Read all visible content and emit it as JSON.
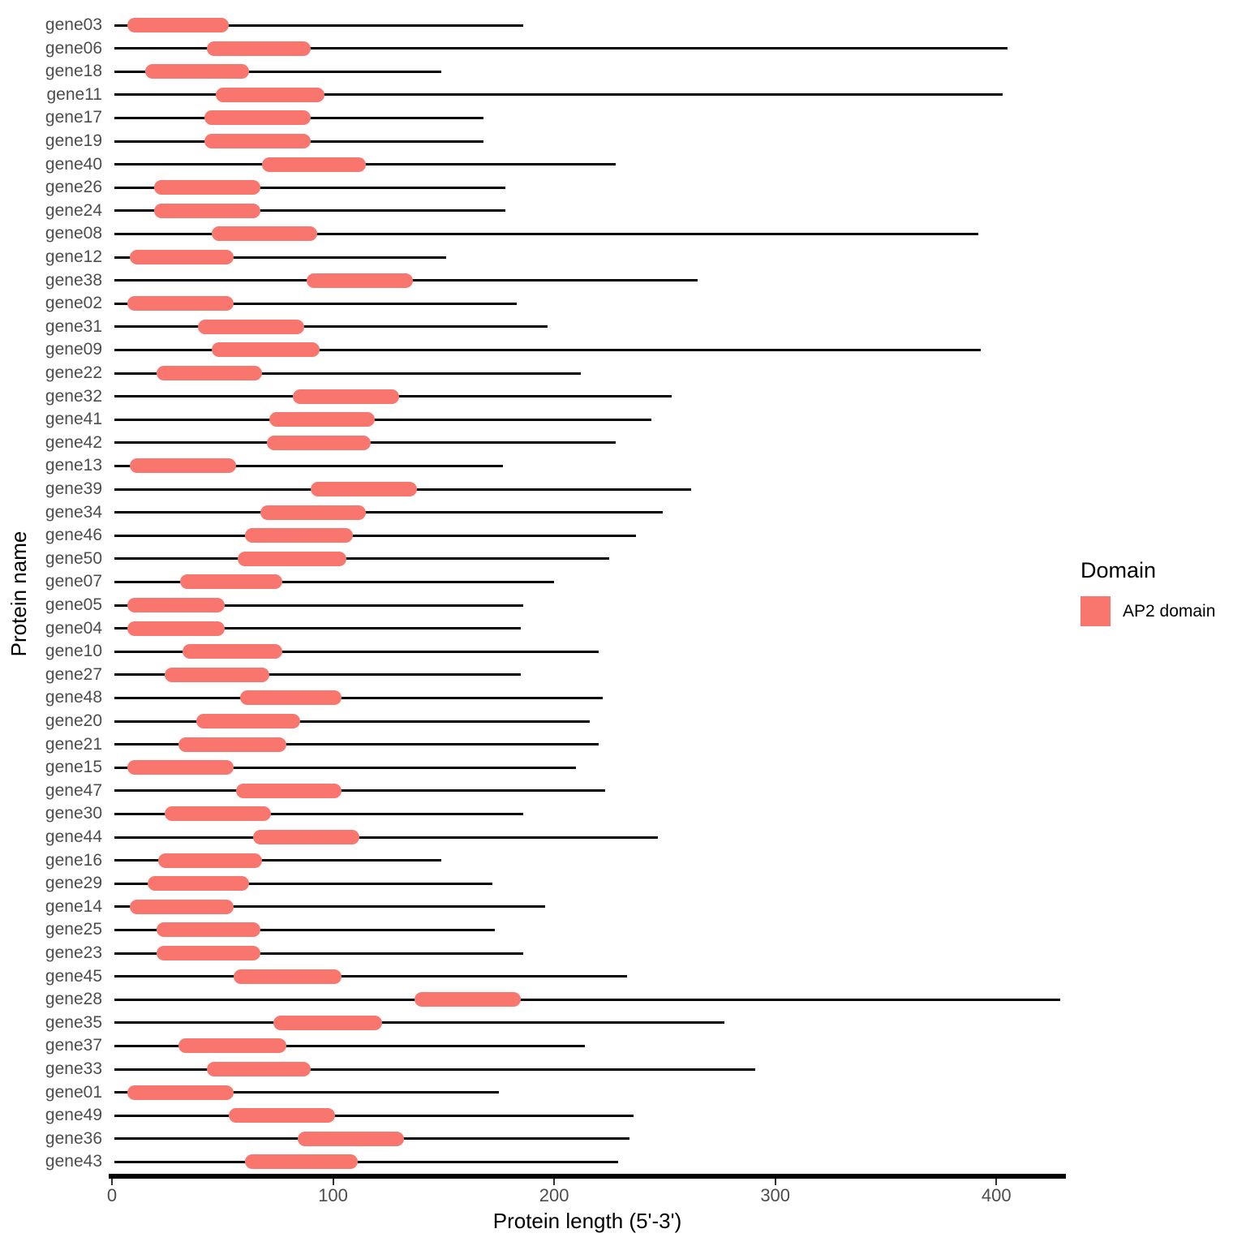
{
  "chart_data": {
    "type": "bar",
    "subtype": "protein-backbone-with-domain-segments",
    "orientation": "horizontal",
    "title": "",
    "xlabel": "Protein length (5'-3')",
    "ylabel": "Protein name",
    "xlim": [
      0,
      430
    ],
    "x_ticks": [
      0,
      100,
      200,
      300,
      400
    ],
    "grid": false,
    "backbone_start": 1,
    "legend": {
      "title": "Domain",
      "position": "right",
      "entries": [
        {
          "label": "AP2 domain",
          "color": "#F8766D"
        }
      ]
    },
    "colors": {
      "domain_fill": "#F8766D",
      "backbone": "#000000",
      "axis_text": "#4D4D4D",
      "axis_line": "#000000",
      "title_text": "#000000"
    },
    "proteins": [
      {
        "name": "gene03",
        "length": 186,
        "domain_begin": 7,
        "domain_end": 53
      },
      {
        "name": "gene06",
        "length": 405,
        "domain_begin": 43,
        "domain_end": 90
      },
      {
        "name": "gene18",
        "length": 149,
        "domain_begin": 15,
        "domain_end": 62
      },
      {
        "name": "gene11",
        "length": 403,
        "domain_begin": 47,
        "domain_end": 96
      },
      {
        "name": "gene17",
        "length": 168,
        "domain_begin": 42,
        "domain_end": 90
      },
      {
        "name": "gene19",
        "length": 168,
        "domain_begin": 42,
        "domain_end": 90
      },
      {
        "name": "gene40",
        "length": 228,
        "domain_begin": 68,
        "domain_end": 115
      },
      {
        "name": "gene26",
        "length": 178,
        "domain_begin": 19,
        "domain_end": 67
      },
      {
        "name": "gene24",
        "length": 178,
        "domain_begin": 19,
        "domain_end": 67
      },
      {
        "name": "gene08",
        "length": 392,
        "domain_begin": 45,
        "domain_end": 93
      },
      {
        "name": "gene12",
        "length": 151,
        "domain_begin": 8,
        "domain_end": 55
      },
      {
        "name": "gene38",
        "length": 265,
        "domain_begin": 88,
        "domain_end": 136
      },
      {
        "name": "gene02",
        "length": 183,
        "domain_begin": 7,
        "domain_end": 55
      },
      {
        "name": "gene31",
        "length": 197,
        "domain_begin": 39,
        "domain_end": 87
      },
      {
        "name": "gene09",
        "length": 393,
        "domain_begin": 45,
        "domain_end": 94
      },
      {
        "name": "gene22",
        "length": 212,
        "domain_begin": 20,
        "domain_end": 68
      },
      {
        "name": "gene32",
        "length": 253,
        "domain_begin": 82,
        "domain_end": 130
      },
      {
        "name": "gene41",
        "length": 244,
        "domain_begin": 71,
        "domain_end": 119
      },
      {
        "name": "gene42",
        "length": 228,
        "domain_begin": 70,
        "domain_end": 117
      },
      {
        "name": "gene13",
        "length": 177,
        "domain_begin": 8,
        "domain_end": 56
      },
      {
        "name": "gene39",
        "length": 262,
        "domain_begin": 90,
        "domain_end": 138
      },
      {
        "name": "gene34",
        "length": 249,
        "domain_begin": 67,
        "domain_end": 115
      },
      {
        "name": "gene46",
        "length": 237,
        "domain_begin": 60,
        "domain_end": 109
      },
      {
        "name": "gene50",
        "length": 225,
        "domain_begin": 57,
        "domain_end": 106
      },
      {
        "name": "gene07",
        "length": 200,
        "domain_begin": 31,
        "domain_end": 77
      },
      {
        "name": "gene05",
        "length": 186,
        "domain_begin": 7,
        "domain_end": 51
      },
      {
        "name": "gene04",
        "length": 185,
        "domain_begin": 7,
        "domain_end": 51
      },
      {
        "name": "gene10",
        "length": 220,
        "domain_begin": 32,
        "domain_end": 77
      },
      {
        "name": "gene27",
        "length": 185,
        "domain_begin": 24,
        "domain_end": 71
      },
      {
        "name": "gene48",
        "length": 222,
        "domain_begin": 58,
        "domain_end": 104
      },
      {
        "name": "gene20",
        "length": 216,
        "domain_begin": 38,
        "domain_end": 85
      },
      {
        "name": "gene21",
        "length": 220,
        "domain_begin": 30,
        "domain_end": 79
      },
      {
        "name": "gene15",
        "length": 210,
        "domain_begin": 7,
        "domain_end": 55
      },
      {
        "name": "gene47",
        "length": 223,
        "domain_begin": 56,
        "domain_end": 104
      },
      {
        "name": "gene30",
        "length": 186,
        "domain_begin": 24,
        "domain_end": 72
      },
      {
        "name": "gene44",
        "length": 247,
        "domain_begin": 64,
        "domain_end": 112
      },
      {
        "name": "gene16",
        "length": 149,
        "domain_begin": 21,
        "domain_end": 68
      },
      {
        "name": "gene29",
        "length": 172,
        "domain_begin": 16,
        "domain_end": 62
      },
      {
        "name": "gene14",
        "length": 196,
        "domain_begin": 8,
        "domain_end": 55
      },
      {
        "name": "gene25",
        "length": 173,
        "domain_begin": 20,
        "domain_end": 67
      },
      {
        "name": "gene23",
        "length": 186,
        "domain_begin": 20,
        "domain_end": 67
      },
      {
        "name": "gene45",
        "length": 233,
        "domain_begin": 55,
        "domain_end": 104
      },
      {
        "name": "gene28",
        "length": 429,
        "domain_begin": 137,
        "domain_end": 185
      },
      {
        "name": "gene35",
        "length": 277,
        "domain_begin": 73,
        "domain_end": 122
      },
      {
        "name": "gene37",
        "length": 214,
        "domain_begin": 30,
        "domain_end": 79
      },
      {
        "name": "gene33",
        "length": 291,
        "domain_begin": 43,
        "domain_end": 90
      },
      {
        "name": "gene01",
        "length": 175,
        "domain_begin": 7,
        "domain_end": 55
      },
      {
        "name": "gene49",
        "length": 236,
        "domain_begin": 53,
        "domain_end": 101
      },
      {
        "name": "gene36",
        "length": 234,
        "domain_begin": 84,
        "domain_end": 132
      },
      {
        "name": "gene43",
        "length": 229,
        "domain_begin": 60,
        "domain_end": 111
      }
    ]
  }
}
